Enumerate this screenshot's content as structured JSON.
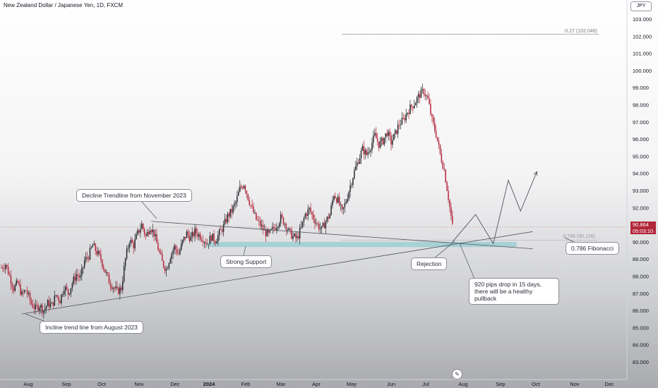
{
  "header": {
    "title": "New Zealand Dollar / Japanese Yen, 1D, FXCM",
    "currency": "JPY"
  },
  "price_label": {
    "price": "90.864",
    "countdown": "05:03:10"
  },
  "chart_data": {
    "type": "candlestick",
    "title": "New Zealand Dollar / Japanese Yen, 1D, FXCM",
    "y_axis": {
      "ticks": [
        "103.000",
        "102.000",
        "101.000",
        "100.000",
        "99.000",
        "98.000",
        "97.000",
        "96.000",
        "95.000",
        "94.000",
        "93.000",
        "92.000",
        "91.000",
        "90.000",
        "89.000",
        "88.000",
        "87.000",
        "86.000",
        "85.000",
        "84.000",
        "83.000"
      ]
    },
    "x_axis": {
      "ticks": [
        "Aug",
        "Sep",
        "Oct",
        "Nov",
        "Dec",
        "2024",
        "Feb",
        "Mar",
        "Apr",
        "May",
        "Jun",
        "Jul",
        "Aug",
        "Sep",
        "Oct",
        "Nov",
        "Dec"
      ]
    },
    "last_price": 90.864,
    "fib_levels": [
      {
        "label": "-0.27 (102.048)",
        "value": 102.048
      },
      {
        "label": "0.786 (90.126)",
        "value": 90.126
      }
    ],
    "path_points": [
      [
        0,
        88.5
      ],
      [
        3,
        88.7
      ],
      [
        6,
        88.0
      ],
      [
        9,
        87.3
      ],
      [
        12,
        87.6
      ],
      [
        15,
        86.9
      ],
      [
        18,
        87.2
      ],
      [
        22,
        86.4
      ],
      [
        25,
        86.1
      ],
      [
        28,
        86.3
      ],
      [
        31,
        86.0
      ],
      [
        34,
        86.4
      ],
      [
        37,
        86.3
      ],
      [
        40,
        86.9
      ],
      [
        43,
        86.6
      ],
      [
        46,
        87.4
      ],
      [
        49,
        87.0
      ],
      [
        52,
        87.6
      ],
      [
        55,
        88.1
      ],
      [
        58,
        87.9
      ],
      [
        61,
        88.9
      ],
      [
        64,
        89.2
      ],
      [
        67,
        89.8
      ],
      [
        70,
        89.4
      ],
      [
        73,
        89.0
      ],
      [
        76,
        88.3
      ],
      [
        79,
        87.7
      ],
      [
        82,
        87.4
      ],
      [
        85,
        87.1
      ],
      [
        88,
        87.3
      ],
      [
        91,
        89.0
      ],
      [
        94,
        90.1
      ],
      [
        97,
        89.8
      ],
      [
        100,
        90.5
      ],
      [
        103,
        91.0
      ],
      [
        106,
        90.3
      ],
      [
        109,
        90.9
      ],
      [
        112,
        90.5
      ],
      [
        115,
        89.6
      ],
      [
        118,
        88.8
      ],
      [
        121,
        88.4
      ],
      [
        124,
        89.2
      ],
      [
        127,
        89.7
      ],
      [
        130,
        89.3
      ],
      [
        133,
        90.0
      ],
      [
        136,
        90.5
      ],
      [
        139,
        90.2
      ],
      [
        142,
        90.6
      ],
      [
        145,
        90.4
      ],
      [
        148,
        90.2
      ],
      [
        151,
        89.9
      ],
      [
        154,
        90.3
      ],
      [
        157,
        90.1
      ],
      [
        160,
        90.5
      ],
      [
        163,
        90.9
      ],
      [
        166,
        91.5
      ],
      [
        169,
        91.8
      ],
      [
        172,
        92.3
      ],
      [
        175,
        93.1
      ],
      [
        178,
        93.4
      ],
      [
        181,
        92.6
      ],
      [
        184,
        91.9
      ],
      [
        187,
        91.3
      ],
      [
        190,
        91.0
      ],
      [
        193,
        90.6
      ],
      [
        196,
        90.4
      ],
      [
        199,
        90.7
      ],
      [
        202,
        91.0
      ],
      [
        205,
        91.4
      ],
      [
        208,
        91.1
      ],
      [
        211,
        90.6
      ],
      [
        214,
        90.3
      ],
      [
        217,
        90.2
      ],
      [
        220,
        90.8
      ],
      [
        223,
        91.6
      ],
      [
        226,
        91.9
      ],
      [
        229,
        91.4
      ],
      [
        232,
        91.0
      ],
      [
        235,
        90.7
      ],
      [
        238,
        91.2
      ],
      [
        241,
        91.6
      ],
      [
        244,
        92.8
      ],
      [
        247,
        92.4
      ],
      [
        250,
        91.7
      ],
      [
        253,
        92.4
      ],
      [
        256,
        93.3
      ],
      [
        259,
        94.1
      ],
      [
        262,
        94.8
      ],
      [
        265,
        95.4
      ],
      [
        268,
        95.1
      ],
      [
        271,
        95.6
      ],
      [
        274,
        96.2
      ],
      [
        277,
        95.7
      ],
      [
        280,
        95.9
      ],
      [
        283,
        96.4
      ],
      [
        286,
        95.8
      ],
      [
        289,
        96.3
      ],
      [
        292,
        96.9
      ],
      [
        295,
        97.1
      ],
      [
        298,
        97.6
      ],
      [
        301,
        97.9
      ],
      [
        304,
        98.2
      ],
      [
        307,
        98.6
      ],
      [
        310,
        98.8
      ],
      [
        313,
        98.3
      ],
      [
        316,
        97.1
      ],
      [
        319,
        96.3
      ],
      [
        322,
        95.1
      ],
      [
        325,
        94.2
      ],
      [
        328,
        92.6
      ],
      [
        331,
        90.9
      ]
    ],
    "projection": [
      [
        331,
        90.0
      ],
      [
        348,
        91.6
      ],
      [
        361,
        89.9
      ],
      [
        372,
        93.6
      ],
      [
        381,
        91.8
      ],
      [
        393,
        94.1
      ]
    ],
    "trendlines": [
      {
        "label": "Decline Trendline from November 2023",
        "from": [
          110,
          91.2
        ],
        "to": [
          390,
          89.6
        ]
      },
      {
        "label": "Incline trend line from August 2023",
        "from": [
          15,
          85.8
        ],
        "to": [
          390,
          90.6
        ]
      }
    ],
    "support_zone": {
      "label": "Strong Support",
      "y_top": 90.0,
      "y_bottom": 89.7,
      "x_from": 150,
      "x_to": 378
    },
    "annotations": [
      {
        "key": "decline",
        "text": "Decline Trendline from November 2023"
      },
      {
        "key": "support",
        "text": "Strong Support"
      },
      {
        "key": "incline",
        "text": "Incline trend line from August 2023"
      },
      {
        "key": "rejection",
        "text": "Rejection"
      },
      {
        "key": "drop",
        "text": "920 pips drop in 15 days, there will be a healthy pullback"
      },
      {
        "key": "fib",
        "text": "0.786 Fibonacci"
      }
    ],
    "colors": {
      "up": "#26272b",
      "down": "#b2263a",
      "zone": "#8ecbd0",
      "line": "#50535e",
      "last_price": "#b2263a"
    }
  }
}
